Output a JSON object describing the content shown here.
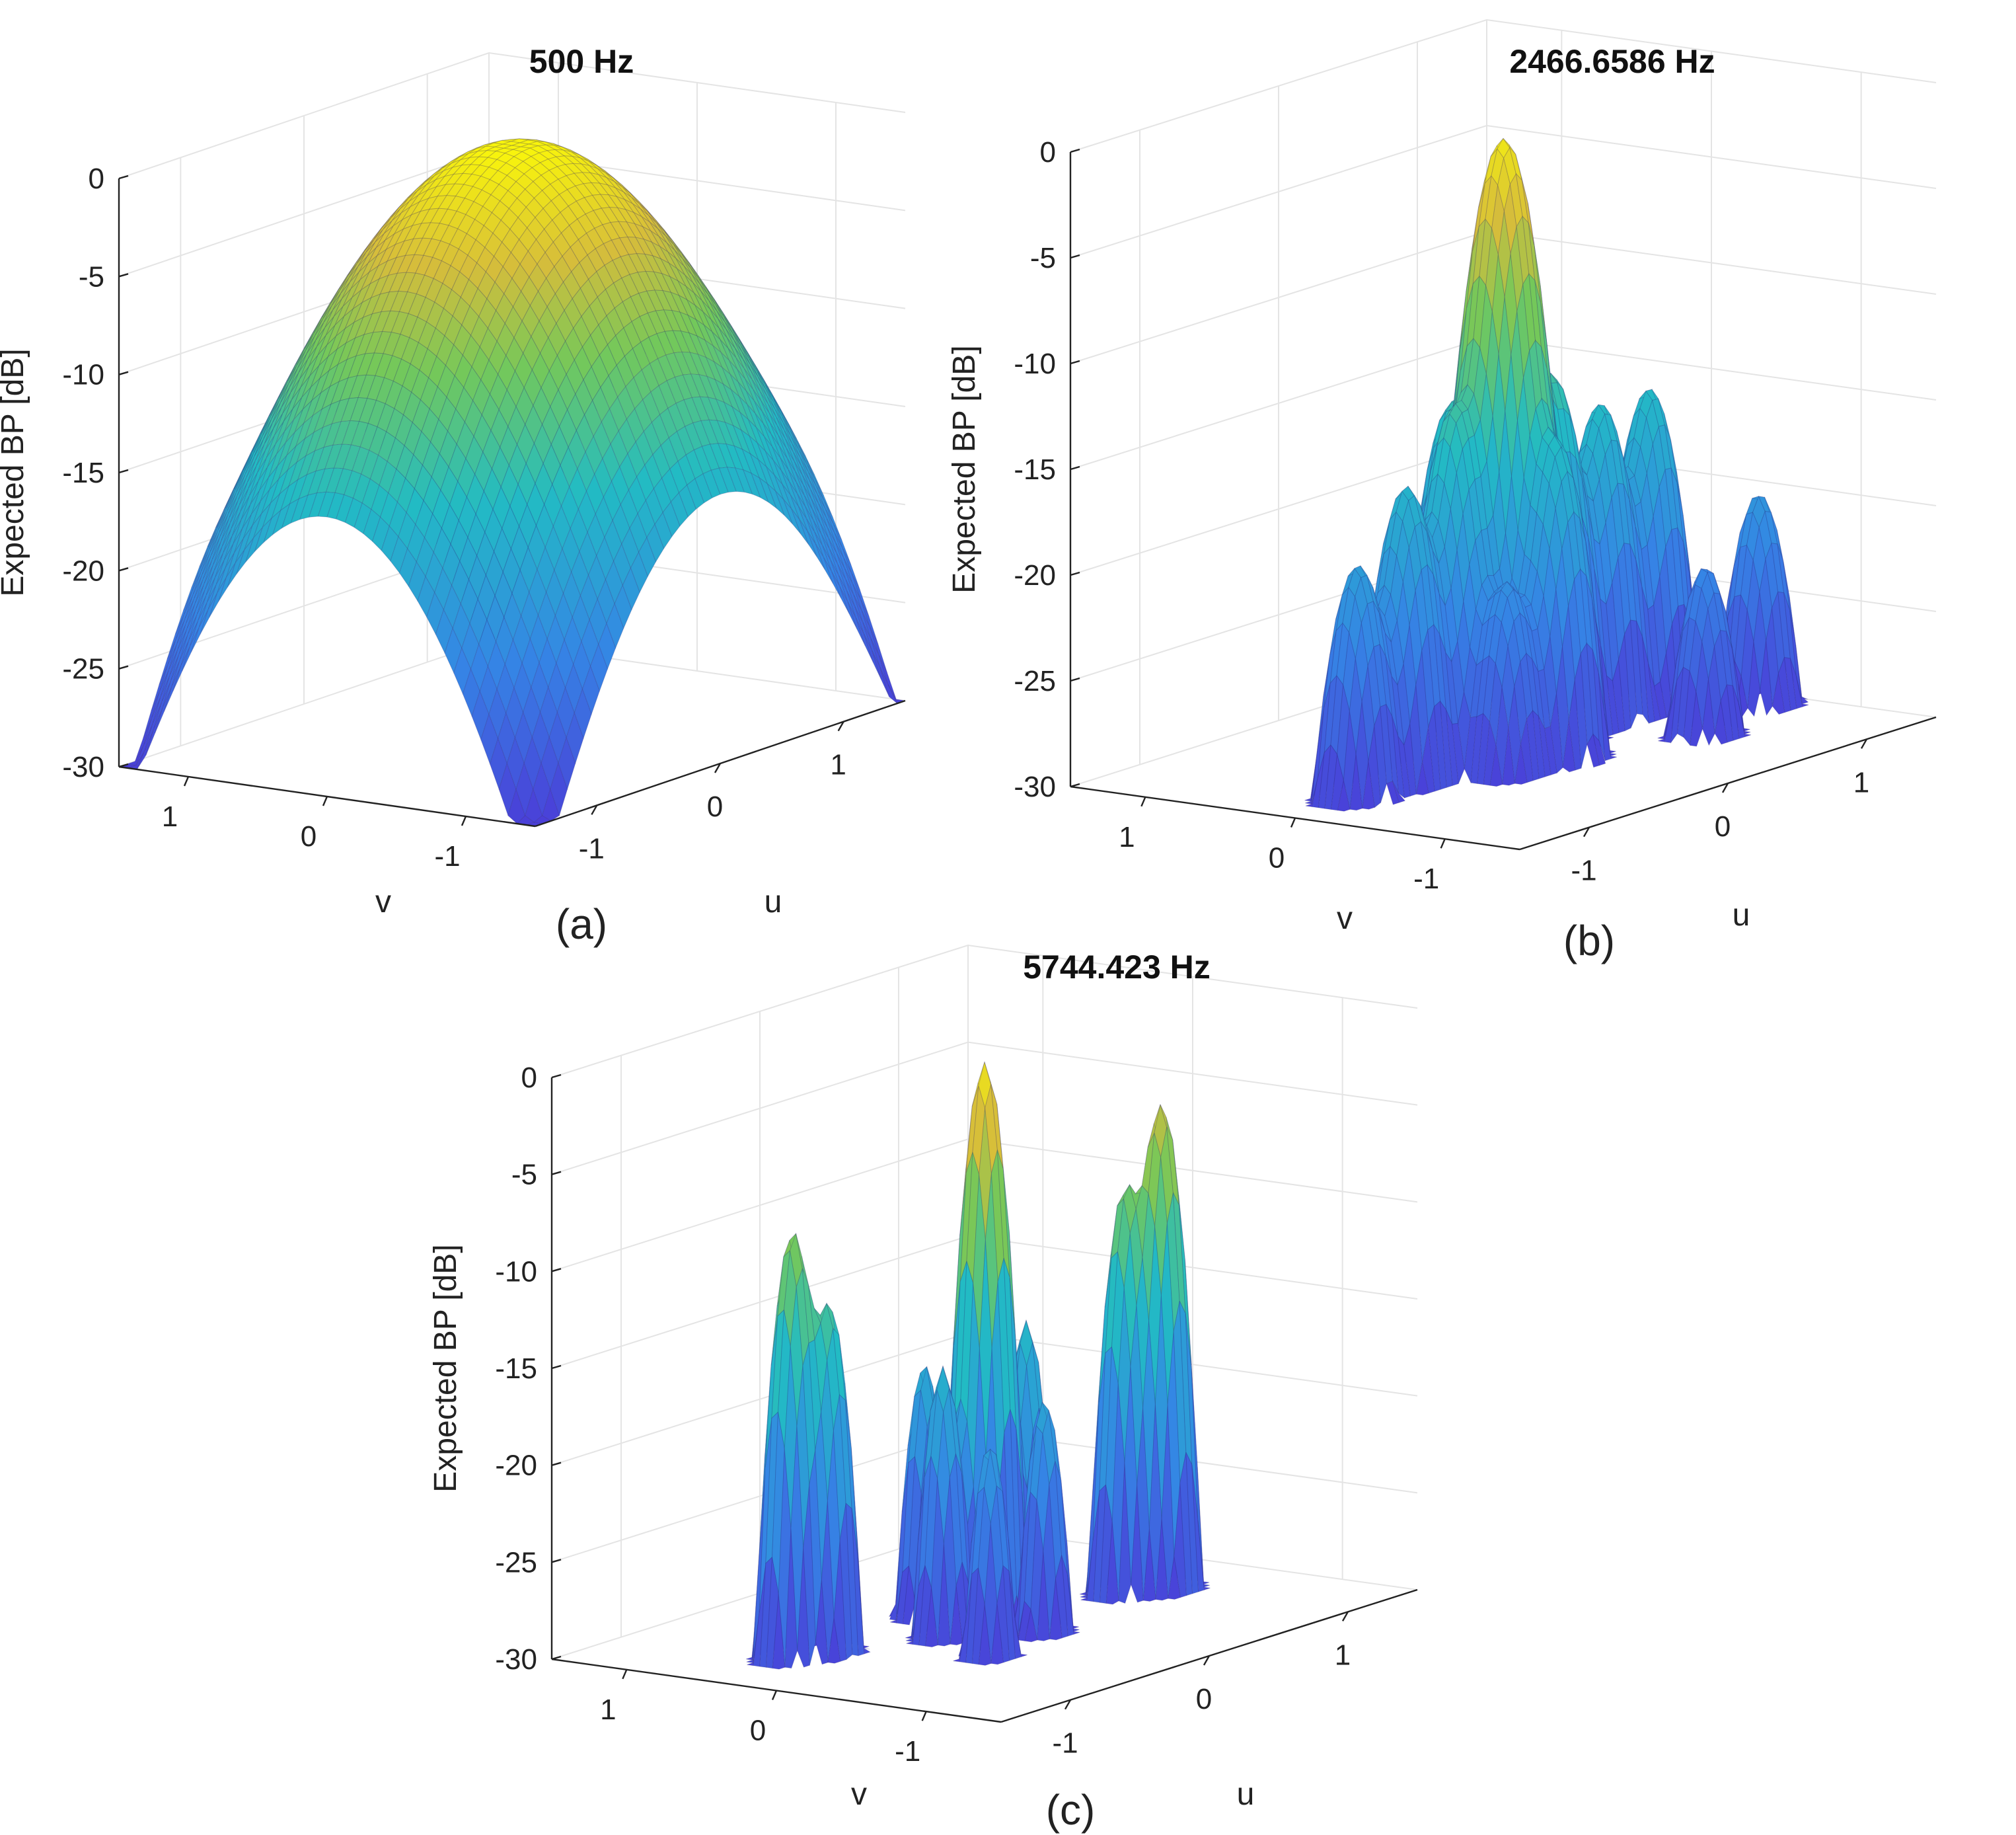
{
  "chart_data": [
    {
      "type": "surface",
      "panel": "(a)",
      "title": "500 Hz",
      "zlabel": "Expected BP [dB]",
      "xlabel": "u",
      "ylabel": "v",
      "zlim": [
        -30,
        0
      ],
      "xlim": [
        -1.5,
        1.5
      ],
      "ylim": [
        -1.5,
        1.5
      ],
      "zticks": [
        "0",
        "-5",
        "-10",
        "-15",
        "-20",
        "-25",
        "-30"
      ],
      "xticks": [
        "-1",
        "0",
        "1"
      ],
      "yticks": [
        "1",
        "0",
        "-1"
      ],
      "main_lobe_peak_db": 0,
      "peaks": [
        {
          "u": 0,
          "v": 0,
          "db": 0
        },
        {
          "u": 0.9,
          "v": 0,
          "db": -11
        },
        {
          "u": 0,
          "v": 0.9,
          "db": -14
        },
        {
          "u": -0.9,
          "v": 0,
          "db": -15
        },
        {
          "u": 0,
          "v": -0.9,
          "db": -16
        }
      ]
    },
    {
      "type": "surface",
      "panel": "(b)",
      "title": "2466.6586 Hz",
      "zlabel": "Expected BP [dB]",
      "xlabel": "u",
      "ylabel": "v",
      "zlim": [
        -30,
        0
      ],
      "xlim": [
        -1.5,
        1.5
      ],
      "ylim": [
        -1.5,
        1.5
      ],
      "zticks": [
        "0",
        "-5",
        "-10",
        "-15",
        "-20",
        "-25",
        "-30"
      ],
      "xticks": [
        "-1",
        "0",
        "1"
      ],
      "yticks": [
        "1",
        "0",
        "-1"
      ],
      "main_lobe_peak_db": -1,
      "peaks": [
        {
          "u": 0,
          "v": 0,
          "db": -1
        },
        {
          "u": 0.35,
          "v": 0,
          "db": -13
        },
        {
          "u": -0.35,
          "v": 0,
          "db": -13
        },
        {
          "u": 0,
          "v": 0.35,
          "db": -14
        },
        {
          "u": 0,
          "v": -0.35,
          "db": -15
        },
        {
          "u": 0.7,
          "v": 0,
          "db": -15
        },
        {
          "u": -0.7,
          "v": 0,
          "db": -16
        },
        {
          "u": 1.05,
          "v": 0,
          "db": -15
        },
        {
          "u": -1.05,
          "v": 0,
          "db": -19
        },
        {
          "u": 0.35,
          "v": 0.35,
          "db": -20
        },
        {
          "u": -0.35,
          "v": -0.35,
          "db": -21
        },
        {
          "u": 0.7,
          "v": -0.7,
          "db": -22
        },
        {
          "u": 1.3,
          "v": -0.5,
          "db": -20
        }
      ]
    },
    {
      "type": "surface",
      "panel": "(c)",
      "title": "5744.423 Hz",
      "zlabel": "Expected BP [dB]",
      "xlabel": "u",
      "ylabel": "v",
      "zlim": [
        -30,
        0
      ],
      "xlim": [
        -1.5,
        1.5
      ],
      "ylim": [
        -1.5,
        1.5
      ],
      "zticks": [
        "0",
        "-5",
        "-10",
        "-15",
        "-20",
        "-25",
        "-30"
      ],
      "xticks": [
        "-1",
        "0",
        "1"
      ],
      "yticks": [
        "1",
        "0",
        "-1"
      ],
      "main_lobe_peak_db": -1,
      "peaks": [
        {
          "u": 0,
          "v": 0,
          "db": -1
        },
        {
          "u": -0.95,
          "v": 0.4,
          "db": -8
        },
        {
          "u": 0.95,
          "v": -0.3,
          "db": -5
        },
        {
          "u": -0.8,
          "v": 0.3,
          "db": -12
        },
        {
          "u": 0.8,
          "v": -0.2,
          "db": -9
        },
        {
          "u": 0.3,
          "v": 0,
          "db": -15
        },
        {
          "u": -0.3,
          "v": 0,
          "db": -16
        },
        {
          "u": 0,
          "v": 0.4,
          "db": -17
        },
        {
          "u": 0,
          "v": -0.4,
          "db": -18
        },
        {
          "u": 0.5,
          "v": 0.5,
          "db": -19
        },
        {
          "u": -0.5,
          "v": -0.5,
          "db": -19
        }
      ]
    }
  ]
}
